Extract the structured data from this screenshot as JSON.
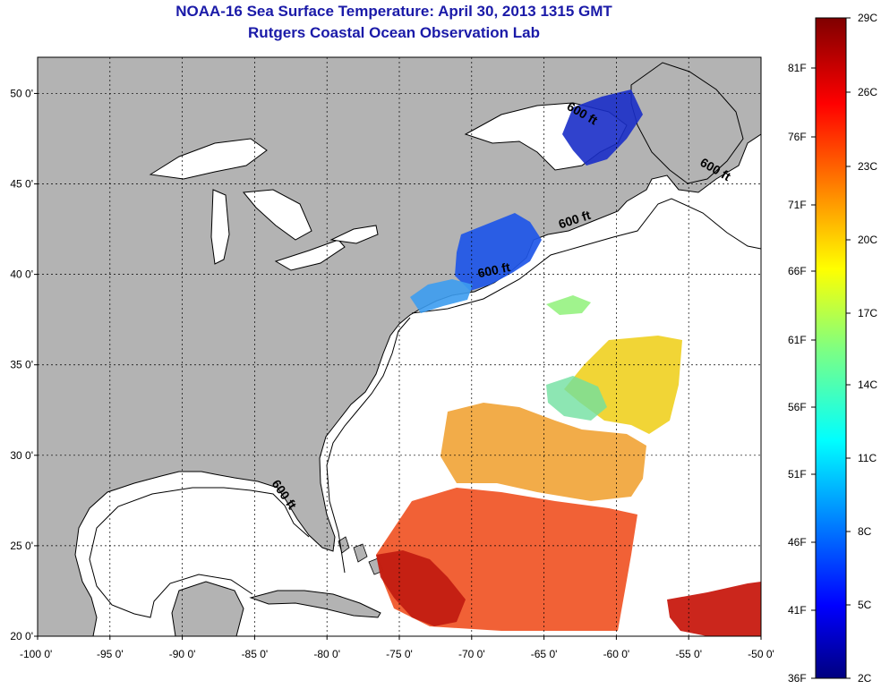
{
  "title": "NOAA-16 Sea Surface Temperature:  April 30, 2013 1315 GMT",
  "subtitle": "Rutgers Coastal Ocean Observation Lab",
  "map": {
    "lon_range": [
      -100,
      -50
    ],
    "lat_range": [
      20,
      52
    ],
    "lat_ticks": [
      {
        "value": 50,
        "label": "50 0'"
      },
      {
        "value": 45,
        "label": "45 0'"
      },
      {
        "value": 40,
        "label": "40 0'"
      },
      {
        "value": 35,
        "label": "35 0'"
      },
      {
        "value": 30,
        "label": "30 0'"
      },
      {
        "value": 25,
        "label": "25 0'"
      },
      {
        "value": 20,
        "label": "20 0'"
      }
    ],
    "lon_ticks": [
      {
        "value": -100,
        "label": "-100 0'"
      },
      {
        "value": -95,
        "label": "-95 0'"
      },
      {
        "value": -90,
        "label": "-90 0'"
      },
      {
        "value": -85,
        "label": "-85 0'"
      },
      {
        "value": -80,
        "label": "-80 0'"
      },
      {
        "value": -75,
        "label": "-75 0'"
      },
      {
        "value": -70,
        "label": "-70 0'"
      },
      {
        "value": -65,
        "label": "-65 0'"
      },
      {
        "value": -60,
        "label": "-60 0'"
      },
      {
        "value": -55,
        "label": "-55 0'"
      },
      {
        "value": -50,
        "label": "-50 0'"
      }
    ],
    "contour_labels": [
      {
        "text": "600 ft",
        "lon": -62.5,
        "lat": 48.7
      },
      {
        "text": "600 ft",
        "lon": -53.3,
        "lat": 45.6
      },
      {
        "text": "600 ft",
        "lon": -62.8,
        "lat": 42.8
      },
      {
        "text": "600 ft",
        "lon": -68.4,
        "lat": 40.0
      },
      {
        "text": "600 ft",
        "lon": -83.2,
        "lat": 27.7
      }
    ],
    "colors": {
      "land": "#b3b3b3",
      "water": "#ffffff",
      "coast": "#000000"
    }
  },
  "colorbar": {
    "celsius_labels": [
      "29C",
      "26C",
      "23C",
      "20C",
      "17C",
      "14C",
      "11C",
      "8C",
      "5C",
      "2C"
    ],
    "fahrenheit_labels": [
      "81F",
      "76F",
      "71F",
      "66F",
      "61F",
      "56F",
      "51F",
      "46F",
      "41F",
      "36F"
    ],
    "c_range": [
      2,
      29
    ],
    "colors": [
      "#00007f",
      "#0000ff",
      "#0080ff",
      "#00ffff",
      "#80ff80",
      "#ffff00",
      "#ff8000",
      "#ff0000",
      "#7f0000"
    ]
  }
}
